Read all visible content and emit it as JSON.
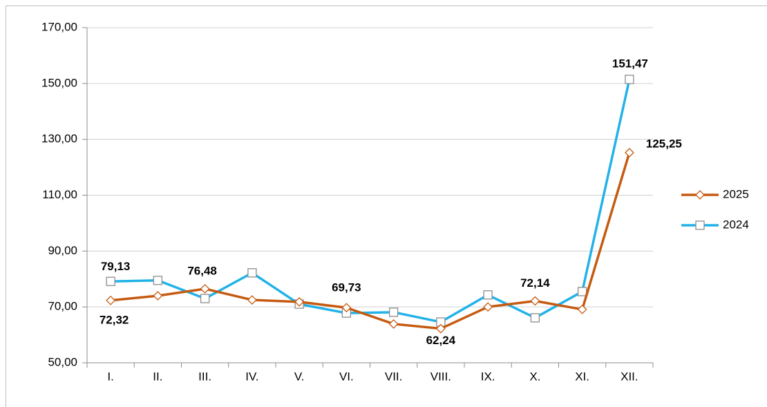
{
  "chart_data": {
    "type": "line",
    "categories": [
      "I.",
      "II.",
      "III.",
      "IV.",
      "V.",
      "VI.",
      "VII.",
      "VIII.",
      "IX.",
      "X.",
      "XI.",
      "XII."
    ],
    "series": [
      {
        "name": "2025",
        "color": "#c55a11",
        "marker": "diamond",
        "values": [
          72.32,
          74.0,
          76.48,
          72.5,
          71.8,
          69.73,
          63.9,
          62.24,
          70.0,
          72.14,
          69.1,
          125.25
        ],
        "value_labels": [
          "72,32",
          null,
          "76,48",
          null,
          null,
          "69,73",
          null,
          "62,24",
          null,
          "72,14",
          null,
          "125,25"
        ]
      },
      {
        "name": "2024",
        "color": "#22b2e8",
        "marker": "square",
        "values": [
          79.13,
          79.5,
          73.0,
          82.2,
          71.0,
          67.8,
          68.1,
          64.6,
          74.3,
          66.1,
          75.5,
          151.47
        ],
        "value_labels": [
          "79,13",
          null,
          null,
          null,
          null,
          null,
          null,
          null,
          null,
          null,
          null,
          "151,47"
        ]
      }
    ],
    "ylim": [
      50,
      170
    ],
    "yticks": [
      {
        "value": 50,
        "label": "50,00"
      },
      {
        "value": 70,
        "label": "70,00"
      },
      {
        "value": 90,
        "label": "90,00"
      },
      {
        "value": 110,
        "label": "110,00"
      },
      {
        "value": 130,
        "label": "130,00"
      },
      {
        "value": 150,
        "label": "150,00"
      },
      {
        "value": 170,
        "label": "170,00"
      }
    ],
    "grid": true,
    "legend": "right"
  }
}
